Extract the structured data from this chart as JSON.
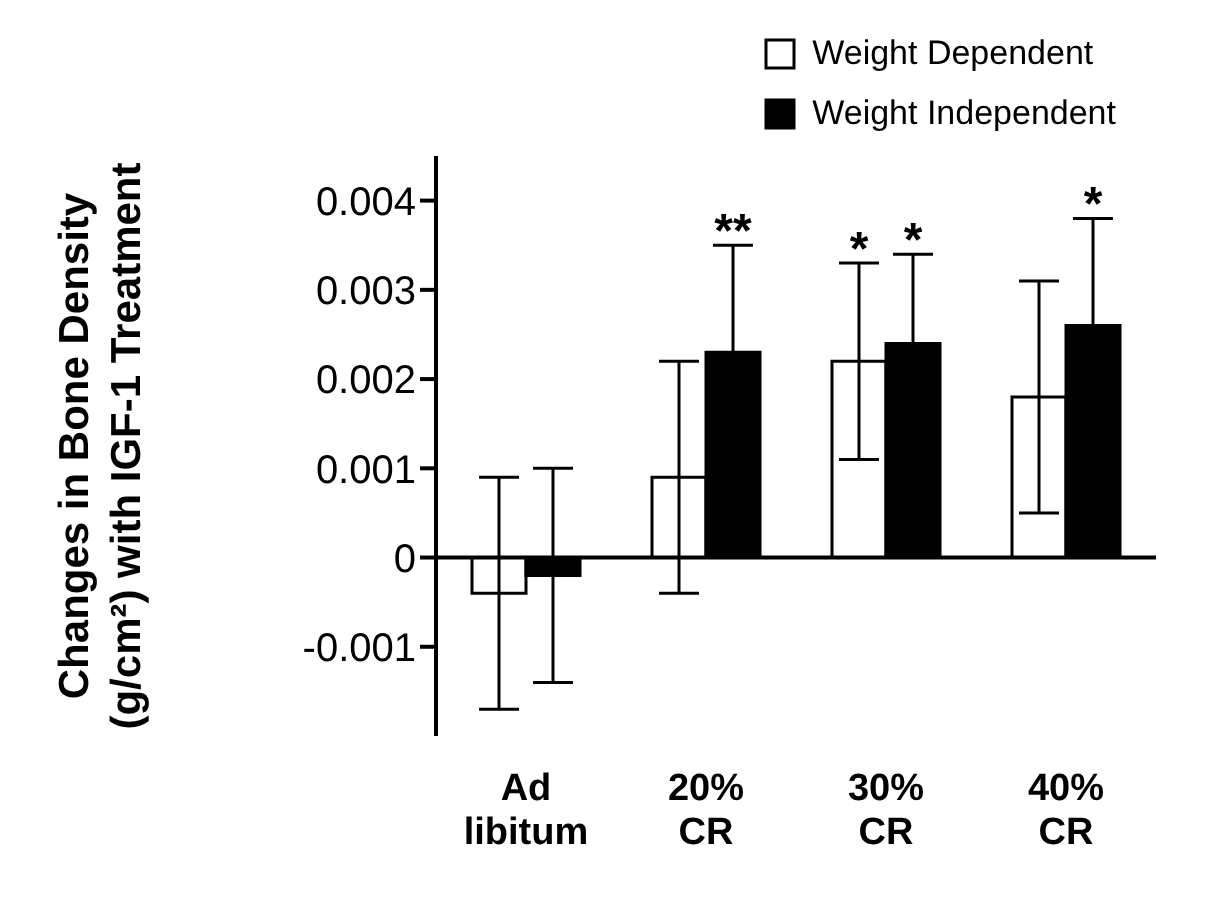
{
  "chart_data": {
    "type": "bar",
    "ylabel": "Changes in Bone Density\n(g/cm²) with IGF-1 Treatment",
    "categories": [
      "Ad\nlibitum",
      "20%\nCR",
      "30%\nCR",
      "40%\nCR"
    ],
    "series": [
      {
        "name": "Weight Dependent",
        "color": "#ffffff",
        "values": [
          -0.0004,
          0.0009,
          0.0022,
          0.0018
        ],
        "errors": [
          0.0013,
          0.0013,
          0.0011,
          0.0013
        ]
      },
      {
        "name": "Weight Independent",
        "color": "#000000",
        "values": [
          -0.0002,
          0.0023,
          0.0024,
          0.0026
        ],
        "errors": [
          0.0012,
          0.0012,
          0.001,
          0.0012
        ]
      }
    ],
    "ylim": [
      -0.002,
      0.0045
    ],
    "yticks": [
      -0.001,
      0,
      0.001,
      0.002,
      0.003,
      0.004
    ],
    "annotations": [
      {
        "text": "**",
        "x": "20%\nCR",
        "y": 0.0035
      },
      {
        "text": "*",
        "x": "30%\nCR",
        "y": 0.0033
      },
      {
        "text": "*",
        "x": "30%\nCR",
        "y": 0.0034
      },
      {
        "text": "*",
        "x": "40%\nCR",
        "y": 0.0038
      }
    ],
    "legend": "top right"
  }
}
